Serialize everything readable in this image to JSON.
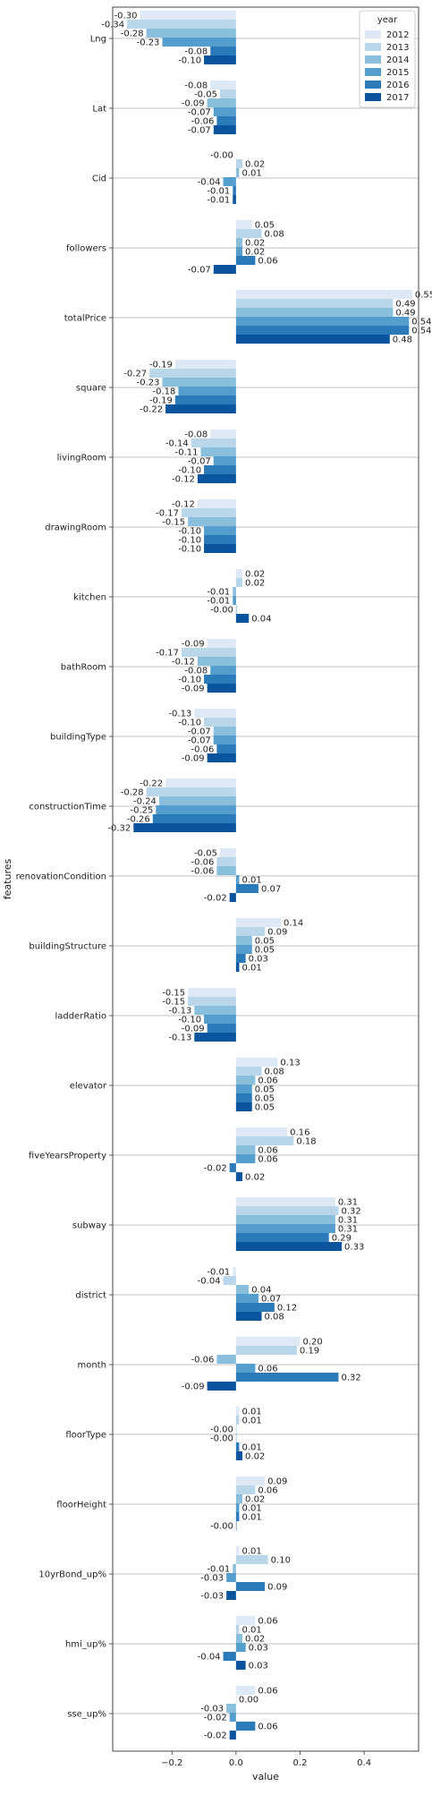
{
  "chart_data": {
    "type": "bar",
    "orientation": "horizontal",
    "title": "",
    "xlabel": "value",
    "ylabel": "features",
    "xlim": [
      -0.385,
      0.57
    ],
    "x_ticks": [
      -0.2,
      0.0,
      0.2,
      0.4
    ],
    "x_tick_labels": [
      "−0.2",
      "0.0",
      "0.2",
      "0.4"
    ],
    "grid": "horizontal lines through each feature",
    "legend": {
      "title": "year",
      "placement": "top-right"
    },
    "categories": [
      "Lng",
      "Lat",
      "Cid",
      "followers",
      "totalPrice",
      "square",
      "livingRoom",
      "drawingRoom",
      "kitchen",
      "bathRoom",
      "buildingType",
      "constructionTime",
      "renovationCondition",
      "buildingStructure",
      "ladderRatio",
      "elevator",
      "fiveYearsProperty",
      "subway",
      "district",
      "month",
      "floorType",
      "floorHeight",
      "10yrBond_up%",
      "hmi_up%",
      "sse_up%"
    ],
    "series": [
      {
        "name": "2012",
        "color": "#dde9f5",
        "values": [
          -0.3,
          -0.08,
          -0.0,
          0.05,
          0.55,
          -0.19,
          -0.08,
          -0.12,
          0.02,
          -0.09,
          -0.13,
          -0.22,
          -0.05,
          0.14,
          -0.15,
          0.13,
          0.16,
          0.31,
          -0.01,
          0.2,
          0.01,
          0.09,
          0.01,
          0.06,
          0.06
        ]
      },
      {
        "name": "2013",
        "color": "#bad6eb",
        "values": [
          -0.34,
          -0.05,
          0.02,
          0.08,
          0.49,
          -0.27,
          -0.14,
          -0.17,
          0.02,
          -0.17,
          -0.1,
          -0.28,
          -0.06,
          0.09,
          -0.15,
          0.08,
          0.18,
          0.32,
          -0.04,
          0.19,
          0.01,
          0.06,
          0.1,
          0.01,
          0.0
        ]
      },
      {
        "name": "2014",
        "color": "#89bedc",
        "values": [
          -0.28,
          -0.09,
          0.01,
          0.02,
          0.49,
          -0.23,
          -0.11,
          -0.15,
          -0.01,
          -0.12,
          -0.07,
          -0.24,
          -0.06,
          0.05,
          -0.13,
          0.06,
          0.06,
          0.31,
          0.04,
          -0.06,
          -0.0,
          0.02,
          -0.01,
          0.02,
          -0.03
        ]
      },
      {
        "name": "2015",
        "color": "#539ecd",
        "values": [
          -0.23,
          -0.07,
          -0.04,
          0.02,
          0.54,
          -0.18,
          -0.07,
          -0.1,
          -0.01,
          -0.08,
          -0.07,
          -0.25,
          0.01,
          0.05,
          -0.1,
          0.05,
          0.06,
          0.31,
          0.07,
          0.06,
          -0.0,
          0.01,
          -0.03,
          0.03,
          -0.02
        ]
      },
      {
        "name": "2016",
        "color": "#2b7bba",
        "values": [
          -0.08,
          -0.06,
          -0.01,
          0.06,
          0.54,
          -0.19,
          -0.1,
          -0.1,
          -0.0,
          -0.1,
          -0.06,
          -0.26,
          0.07,
          0.03,
          -0.09,
          0.05,
          -0.02,
          0.29,
          0.12,
          0.32,
          0.01,
          0.01,
          0.09,
          -0.04,
          0.06
        ]
      },
      {
        "name": "2017",
        "color": "#0b559f",
        "values": [
          -0.1,
          -0.07,
          -0.01,
          -0.07,
          0.48,
          -0.22,
          -0.12,
          -0.1,
          0.04,
          -0.09,
          -0.09,
          -0.32,
          -0.02,
          0.01,
          -0.13,
          0.05,
          0.02,
          0.33,
          0.08,
          -0.09,
          0.02,
          -0.0,
          -0.03,
          0.03,
          -0.02
        ]
      }
    ]
  }
}
